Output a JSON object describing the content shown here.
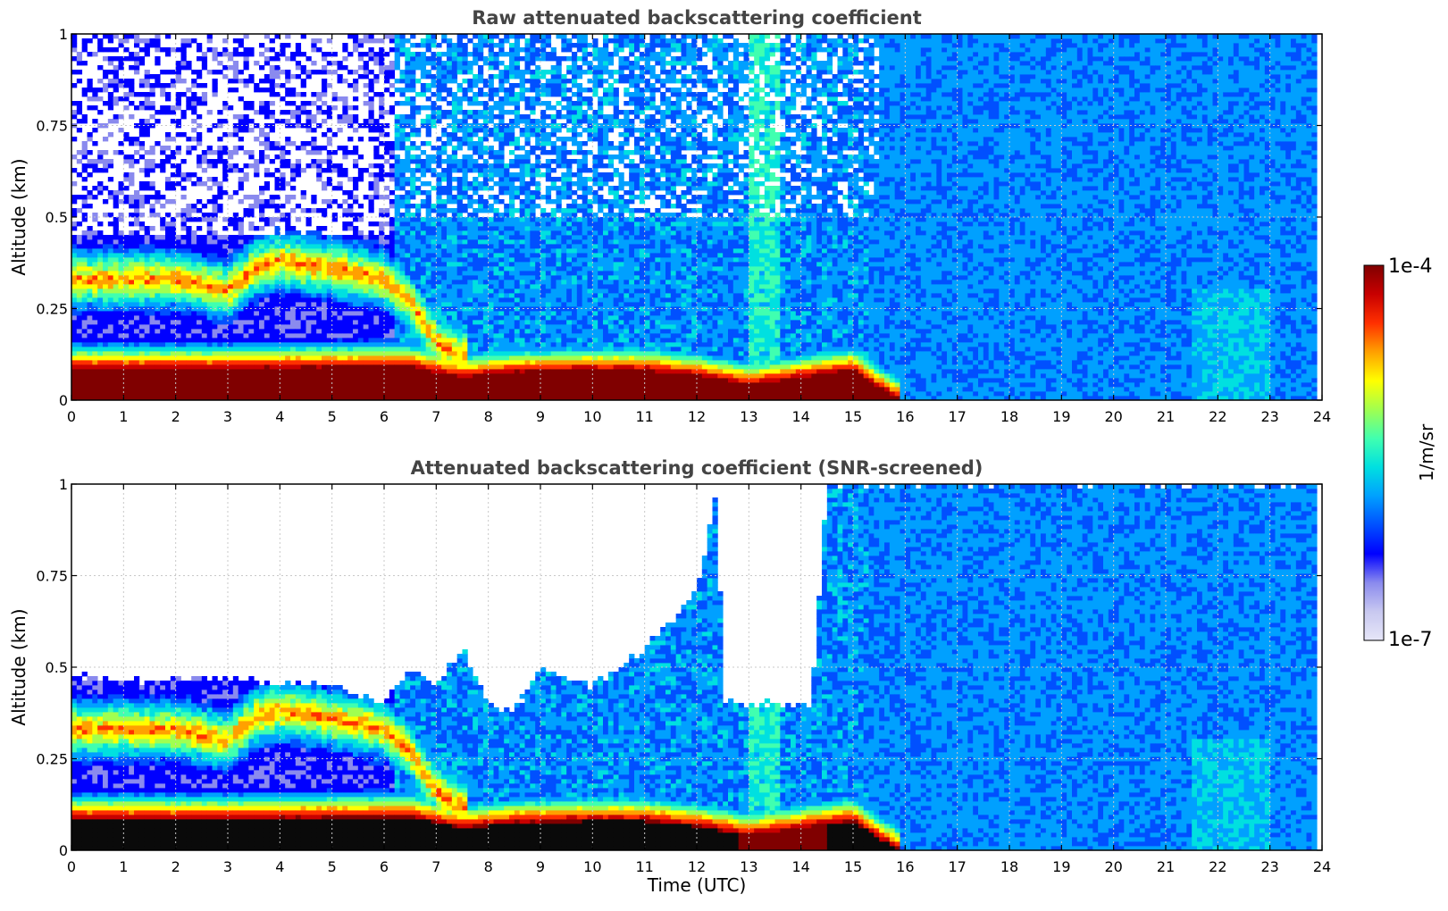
{
  "colors": {
    "scale": [
      "#e6e6f8",
      "#c8c8f0",
      "#8a8aee",
      "#0000ff",
      "#0050ff",
      "#00a0ff",
      "#00e0e0",
      "#40ffb0",
      "#a0ff50",
      "#ffff00",
      "#ffa000",
      "#ff3000",
      "#c80000",
      "#800000"
    ],
    "screened_saturation": "#0a0a0a",
    "grid": "#c8c8c8",
    "title": "#444444"
  },
  "chart_data": [
    {
      "type": "heatmap",
      "title": "Raw attenuated backscattering coefficient",
      "xlabel": "",
      "ylabel": "Altitude (km)",
      "xlim": [
        0,
        24
      ],
      "ylim": [
        0,
        1
      ],
      "xticks": [
        "0",
        "1",
        "2",
        "3",
        "4",
        "5",
        "6",
        "7",
        "8",
        "9",
        "10",
        "11",
        "12",
        "13",
        "14",
        "15",
        "16",
        "17",
        "18",
        "19",
        "20",
        "21",
        "22",
        "23",
        "24"
      ],
      "yticks": [
        "0",
        "0.25",
        "0.5",
        "0.75",
        "1"
      ],
      "grid": true,
      "surface_layer_top_km": [
        [
          0,
          0.085
        ],
        [
          3,
          0.085
        ],
        [
          6,
          0.09
        ],
        [
          6.5,
          0.09
        ],
        [
          7.5,
          0.06
        ],
        [
          8.5,
          0.075
        ],
        [
          10,
          0.08
        ],
        [
          11,
          0.08
        ],
        [
          12,
          0.065
        ],
        [
          13,
          0.04
        ],
        [
          14,
          0.06
        ],
        [
          15,
          0.08
        ],
        [
          15.5,
          0.03
        ],
        [
          15.9,
          0
        ]
      ],
      "elevated_layer_km": [
        [
          0,
          0.33
        ],
        [
          1,
          0.33
        ],
        [
          2,
          0.33
        ],
        [
          3,
          0.3
        ],
        [
          3.5,
          0.36
        ],
        [
          4,
          0.38
        ],
        [
          5,
          0.36
        ],
        [
          6,
          0.33
        ],
        [
          6.5,
          0.27
        ],
        [
          7,
          0.16
        ],
        [
          7.5,
          0.12
        ]
      ]
    },
    {
      "type": "heatmap",
      "title": "Attenuated backscattering coefficient (SNR-screened)",
      "xlabel": "Time (UTC)",
      "ylabel": "Altitude (km)",
      "xlim": [
        0,
        24
      ],
      "ylim": [
        0,
        1
      ],
      "xticks": [
        "0",
        "1",
        "2",
        "3",
        "4",
        "5",
        "6",
        "7",
        "8",
        "9",
        "10",
        "11",
        "12",
        "13",
        "14",
        "15",
        "16",
        "17",
        "18",
        "19",
        "20",
        "21",
        "22",
        "23",
        "24"
      ],
      "yticks": [
        "0",
        "0.25",
        "0.5",
        "0.75",
        "1"
      ],
      "grid": true,
      "screened_top_km": [
        [
          0,
          0.48
        ],
        [
          1,
          0.46
        ],
        [
          2,
          0.47
        ],
        [
          3,
          0.47
        ],
        [
          4,
          0.46
        ],
        [
          5,
          0.45
        ],
        [
          6,
          0.4
        ],
        [
          6.5,
          0.5
        ],
        [
          7,
          0.45
        ],
        [
          7.5,
          0.55
        ],
        [
          8,
          0.4
        ],
        [
          8.5,
          0.38
        ],
        [
          9,
          0.5
        ],
        [
          10,
          0.45
        ],
        [
          11,
          0.55
        ],
        [
          12,
          0.7
        ],
        [
          12.4,
          1
        ],
        [
          12.5,
          0.4
        ],
        [
          14.2,
          0.4
        ],
        [
          14.5,
          1
        ],
        [
          24,
          1
        ]
      ]
    }
  ],
  "colorbar": {
    "label": "1/m/sr",
    "max_label": "1e-4",
    "min_label": "1e-7",
    "scale": "log"
  }
}
